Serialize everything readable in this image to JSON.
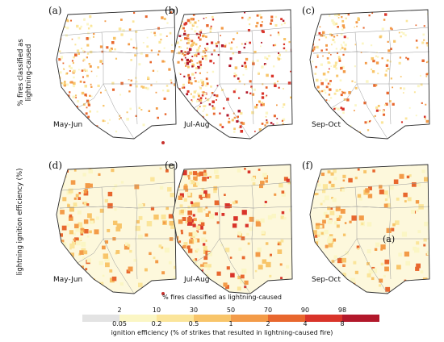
{
  "row_labels": {
    "top": "% fires classified as lightning-caused",
    "bottom": "lightning ignition efficiency (%)"
  },
  "panels": [
    {
      "label": "(a)",
      "season": "May-Jun",
      "intensity": 0.45,
      "style": "dots"
    },
    {
      "label": "(b)",
      "season": "Jul-Aug",
      "intensity": 0.9,
      "style": "dots"
    },
    {
      "label": "(c)",
      "season": "Sep-Oct",
      "intensity": 0.5,
      "style": "dots"
    },
    {
      "label": "(d)",
      "season": "May-Jun",
      "intensity": 0.35,
      "style": "fill"
    },
    {
      "label": "(e)",
      "season": "Jul-Aug",
      "intensity": 0.6,
      "style": "fill"
    },
    {
      "label": "(f)",
      "season": "Sep-Oct",
      "intensity": 0.4,
      "style": "fill"
    }
  ],
  "inset_label": "(a)",
  "legend": {
    "title_top": "% fires classified as lightning-caused",
    "title_bottom": "ignition efficiency (% of strikes that resulted in lightning-caused fire)",
    "top_ticks": [
      "2",
      "10",
      "30",
      "50",
      "70",
      "90",
      "98"
    ],
    "bottom_ticks": [
      "0.05",
      "0.2",
      "0.5",
      "1",
      "2",
      "4",
      "8"
    ],
    "colors": [
      "#e3e3e3",
      "#fbf6c4",
      "#fbe59a",
      "#f8c56a",
      "#f39b48",
      "#e8672e",
      "#d9342a",
      "#b2182b"
    ]
  }
}
